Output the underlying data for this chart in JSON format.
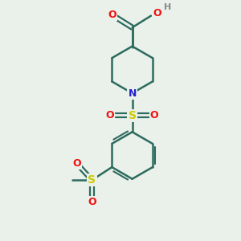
{
  "bg_color": "#eaf0ea",
  "bond_color": "#2d6b5e",
  "atom_colors": {
    "O": "#ee1111",
    "N": "#2222cc",
    "S": "#cccc00",
    "H": "#888888",
    "C": "#2d6b5e"
  },
  "figsize": [
    3.0,
    3.0
  ],
  "dpi": 100
}
